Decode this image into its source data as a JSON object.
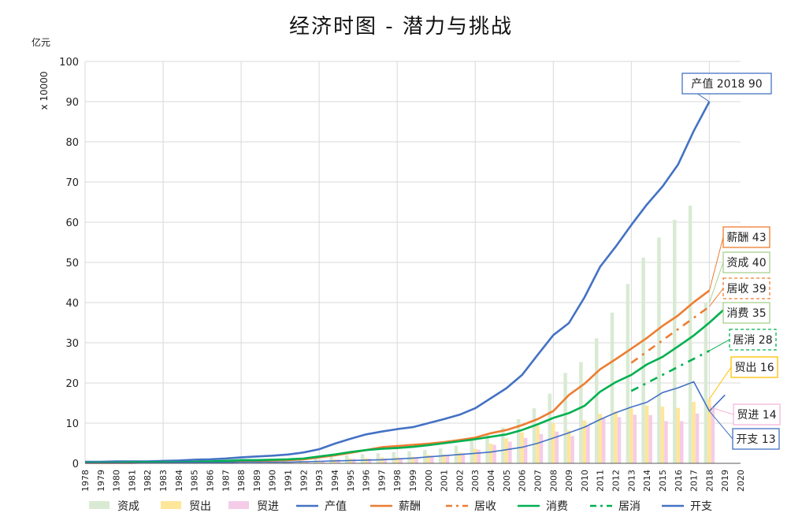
{
  "chart_data": {
    "type": "line",
    "title": "经济时图 - 潜力与挑战",
    "unit_label": "亿元",
    "scale_label": "x 10000",
    "ylim": [
      0,
      100
    ],
    "y_ticks": [
      0,
      10,
      20,
      30,
      40,
      50,
      60,
      70,
      80,
      90,
      100
    ],
    "grid": true,
    "legend_position": "bottom",
    "categories": [
      "1978",
      "1979",
      "1980",
      "1981",
      "1982",
      "1983",
      "1984",
      "1985",
      "1986",
      "1987",
      "1988",
      "1989",
      "1990",
      "1991",
      "1992",
      "1993",
      "1994",
      "1995",
      "1996",
      "1997",
      "1998",
      "1999",
      "2000",
      "2001",
      "2002",
      "2003",
      "2004",
      "2005",
      "2006",
      "2007",
      "2008",
      "2009",
      "2010",
      "2011",
      "2012",
      "2013",
      "2014",
      "2015",
      "2016",
      "2017",
      "2018",
      "2019",
      "2020"
    ],
    "series": [
      {
        "name": "资成",
        "kind": "bar",
        "color": "#d9ead3",
        "values": [
          0.1,
          0.1,
          0.1,
          0.1,
          0.1,
          0.1,
          0.2,
          0.2,
          0.3,
          0.3,
          0.4,
          0.4,
          0.5,
          0.6,
          0.8,
          1.3,
          1.7,
          2.0,
          2.3,
          2.5,
          2.8,
          3.0,
          3.3,
          3.7,
          4.4,
          5.6,
          7.0,
          8.9,
          11.0,
          13.7,
          17.3,
          22.5,
          25.2,
          31.1,
          37.5,
          44.6,
          51.2,
          56.2,
          60.6,
          64.1,
          40,
          null,
          null
        ]
      },
      {
        "name": "贸出",
        "kind": "bar",
        "color": "#ffe699",
        "values": [
          0.01,
          0.01,
          0.03,
          0.04,
          0.05,
          0.05,
          0.06,
          0.08,
          0.11,
          0.15,
          0.18,
          0.2,
          0.3,
          0.38,
          0.47,
          0.53,
          1.0,
          1.2,
          1.3,
          1.5,
          1.5,
          1.6,
          2.1,
          2.2,
          2.7,
          3.6,
          4.9,
          6.2,
          7.7,
          9.3,
          10.0,
          8.2,
          10.7,
          12.3,
          12.9,
          13.7,
          14.4,
          14.1,
          13.8,
          15.3,
          16,
          null,
          null
        ]
      },
      {
        "name": "贸进",
        "kind": "bar",
        "color": "#f4cce8",
        "values": [
          0.01,
          0.02,
          0.03,
          0.04,
          0.04,
          0.04,
          0.06,
          0.1,
          0.15,
          0.16,
          0.21,
          0.22,
          0.25,
          0.3,
          0.44,
          0.6,
          1.0,
          1.1,
          1.2,
          1.2,
          1.1,
          1.4,
          1.9,
          2.0,
          2.5,
          3.4,
          4.6,
          5.4,
          6.3,
          7.3,
          7.9,
          6.8,
          9.5,
          11.3,
          11.5,
          12.1,
          12.0,
          10.5,
          10.5,
          12.4,
          14,
          null,
          null
        ]
      },
      {
        "name": "产值",
        "kind": "line",
        "color": "#4472c4",
        "dash": "solid",
        "values": [
          0.4,
          0.4,
          0.5,
          0.5,
          0.5,
          0.6,
          0.7,
          0.9,
          1.0,
          1.2,
          1.5,
          1.7,
          1.9,
          2.2,
          2.7,
          3.5,
          4.9,
          6.1,
          7.2,
          7.9,
          8.5,
          9.0,
          10.0,
          11.0,
          12.1,
          13.7,
          16.2,
          18.7,
          22.0,
          27.0,
          31.9,
          34.9,
          41.3,
          48.9,
          53.9,
          59.3,
          64.4,
          68.9,
          74.4,
          82.7,
          90,
          null,
          null
        ]
      },
      {
        "name": "薪酬",
        "kind": "line",
        "color": "#ed7d31",
        "dash": "solid",
        "values": [
          0.1,
          0.1,
          0.1,
          0.1,
          0.2,
          0.2,
          0.2,
          0.3,
          0.3,
          0.4,
          0.5,
          0.6,
          0.7,
          0.8,
          1.0,
          1.5,
          2.0,
          2.6,
          3.3,
          4.0,
          4.3,
          4.6,
          4.9,
          5.3,
          5.8,
          6.4,
          7.5,
          8.3,
          9.5,
          11.0,
          13.0,
          17.0,
          19.8,
          23.4,
          25.9,
          28.5,
          31.2,
          34.2,
          36.8,
          40.1,
          43,
          null,
          null
        ]
      },
      {
        "name": "居收",
        "kind": "line",
        "color": "#ed7d31",
        "dash": "dashdot",
        "values": [
          null,
          null,
          null,
          null,
          null,
          null,
          null,
          null,
          null,
          null,
          null,
          null,
          null,
          null,
          null,
          null,
          null,
          null,
          null,
          null,
          null,
          null,
          null,
          null,
          null,
          null,
          null,
          null,
          null,
          null,
          null,
          null,
          null,
          null,
          null,
          null,
          null,
          null,
          null,
          null,
          39,
          null,
          null
        ],
        "segment_start": {
          "year": "2013",
          "value": 25
        }
      },
      {
        "name": "消费",
        "kind": "line",
        "color": "#00b050",
        "dash": "solid",
        "values": [
          0.2,
          0.2,
          0.2,
          0.3,
          0.3,
          0.3,
          0.3,
          0.4,
          0.5,
          0.6,
          0.8,
          0.8,
          0.9,
          1.0,
          1.2,
          1.7,
          2.2,
          2.8,
          3.3,
          3.6,
          3.8,
          4.1,
          4.5,
          5.0,
          5.5,
          6.0,
          6.6,
          7.2,
          8.3,
          9.7,
          11.3,
          12.5,
          14.3,
          17.8,
          20.2,
          22.0,
          24.6,
          26.5,
          29.1,
          31.8,
          35,
          38.5,
          null
        ]
      },
      {
        "name": "居消",
        "kind": "line",
        "color": "#00b050",
        "dash": "dashdot",
        "values": [
          null,
          null,
          null,
          null,
          null,
          null,
          null,
          null,
          null,
          null,
          null,
          null,
          null,
          null,
          null,
          null,
          null,
          null,
          null,
          null,
          null,
          null,
          null,
          null,
          null,
          null,
          null,
          null,
          null,
          null,
          null,
          null,
          null,
          null,
          null,
          null,
          null,
          null,
          null,
          null,
          28,
          null,
          null
        ],
        "segment_start": {
          "year": "2013",
          "value": 18
        }
      },
      {
        "name": "开支",
        "kind": "line",
        "color": "#4472c4",
        "dash": "solid",
        "thin": true,
        "values": [
          0.1,
          0.1,
          0.1,
          0.1,
          0.1,
          0.1,
          0.2,
          0.2,
          0.2,
          0.2,
          0.3,
          0.3,
          0.3,
          0.3,
          0.4,
          0.5,
          0.6,
          0.7,
          0.8,
          0.9,
          1.1,
          1.3,
          1.6,
          1.9,
          2.2,
          2.5,
          2.8,
          3.4,
          4.0,
          5.0,
          6.3,
          7.6,
          9.0,
          10.9,
          12.6,
          14.0,
          15.2,
          17.6,
          18.8,
          20.3,
          13,
          17,
          null
        ]
      }
    ],
    "callouts": [
      {
        "text": "产值 2018  90",
        "color": "#4472c4",
        "dashed": false,
        "year": "2018",
        "value": 90
      },
      {
        "text": "薪酬 43",
        "color": "#ed7d31",
        "dashed": false,
        "year": "2018",
        "value": 43
      },
      {
        "text": "资成 40",
        "color": "#a9d18e",
        "dashed": false,
        "year": "2018",
        "value": 40
      },
      {
        "text": "居收 39",
        "color": "#ed7d31",
        "dashed": true,
        "year": "2018",
        "value": 39
      },
      {
        "text": "消费 35",
        "color": "#a9d18e",
        "dashed": false,
        "year": "2019",
        "value": 35
      },
      {
        "text": "居消 28",
        "color": "#00b050",
        "dashed": true,
        "year": "2018",
        "value": 28
      },
      {
        "text": "贸出 16",
        "color": "#ffc000",
        "dashed": false,
        "year": "2018",
        "value": 16
      },
      {
        "text": "贸进 14",
        "color": "#f4b6d8",
        "dashed": false,
        "year": "2018",
        "value": 14
      },
      {
        "text": "开支 13",
        "color": "#4472c4",
        "dashed": false,
        "year": "2018",
        "value": 13
      }
    ]
  }
}
